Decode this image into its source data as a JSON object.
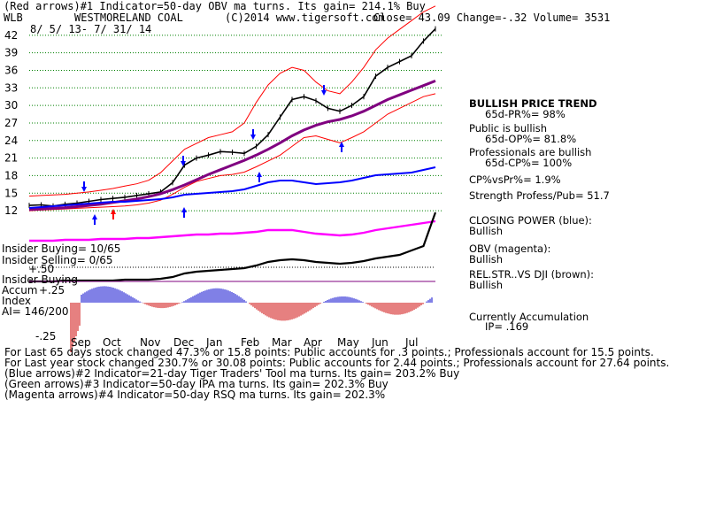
{
  "header": {
    "line1": "(Red arrows)#1 Indicator=50-day OBV ma turns. Its gain= 214.1% Buy",
    "ticker": "WLB",
    "company": "WESTMORELAND COAL",
    "copyright": "(C)2014 www.tigersoft.com",
    "quote": "Close=  43.09  Change=-.32 Volume= 3531",
    "date_range": "8/ 5/ 13- 7/ 31/ 14"
  },
  "right_panel": {
    "trend_title": "BULLISH PRICE TREND",
    "pr": "65d-PR%= 98%",
    "public": "Public is bullish",
    "op": "65d-OP%= 81.8%",
    "professionals": "Professionals are bullish",
    "cp": "65d-CP%= 100%",
    "cpvspr": "CP%vsPr%=  1.9%",
    "strength": "Strength Profess/Pub= 51.7",
    "closing_power": "CLOSING POWER (blue):",
    "cp_state": "Bullish",
    "obv": "OBV (magenta):",
    "obv_state": "Bullish",
    "relstr": "REL.STR..VS DJI (brown):",
    "relstr_state": "Bullish",
    "accum": "Currently Accumulation",
    "ip": "IP=  .169"
  },
  "left_labels": {
    "insider_buying_1": "Insider Buying= 10/65",
    "insider_selling": "Insider Selling= 0/65",
    "plus50": "+.50",
    "insider_buying_2": "Insider Buying",
    "accum": "Accum",
    "plus25": "+.25",
    "index": "Index",
    "ai": "AI= 146/200",
    "minus25": "-.25"
  },
  "footer": [
    "For Last 65 days stock changed  47.3% or  15.8 points:  Public accounts for  .3 points.;  Professionals account for  15.5 points.",
    "For Last year stock changed  230.7% or  30.08 points:  Public accounts for  2.44 points.;  Professionals account for  27.64 points.",
    "(Blue arrows)#2 Indicator=21-day Tiger Traders' Tool ma turns. Its gain= 203.2% Buy",
    "(Green arrows)#3 Indicator=50-day IPA ma turns. Its gain= 202.3% Buy",
    "(Magenta arrows)#4 Indicator=50-day RSQ ma turns. Its gain= 202.3%"
  ],
  "colors": {
    "price": "#000000",
    "band": "#ff0000",
    "ma": "#800080",
    "closing_power": "#0000ff",
    "obv": "#ff00ff",
    "relstr": "#8b4513",
    "grid": "#008000",
    "accum_pos": "#0000cc",
    "accum_neg": "#cc0000",
    "buy_arrow": "#0000ff",
    "sell_arrow": "#ff0000"
  },
  "chart_data": {
    "type": "line",
    "title": "WESTMORELAND COAL",
    "y_ticks": [
      42,
      39,
      36,
      33,
      30,
      27,
      24,
      21,
      18,
      15,
      12
    ],
    "ylim": [
      10.5,
      45
    ],
    "months": [
      "Sep",
      "Oct",
      "Nov",
      "Dec",
      "Jan",
      "Feb",
      "Mar",
      "Apr",
      "May",
      "Jun",
      "Jul"
    ],
    "x": [
      "Aug",
      "Aug",
      "Sep",
      "Sep",
      "Sep",
      "Oct",
      "Oct",
      "Oct",
      "Nov",
      "Nov",
      "Nov",
      "Dec",
      "Dec",
      "Dec",
      "Jan",
      "Jan",
      "Jan",
      "Feb",
      "Feb",
      "Feb",
      "Mar",
      "Mar",
      "Mar",
      "Apr",
      "Apr",
      "Apr",
      "May",
      "May",
      "May",
      "Jun",
      "Jun",
      "Jun",
      "Jul",
      "Jul",
      "Jul"
    ],
    "series": [
      {
        "values": [
          12.9,
          13.0,
          12.8,
          13.1,
          13.3,
          13.6,
          13.9,
          14.1,
          14.3,
          14.6,
          14.9,
          15.2,
          16.8,
          19.8,
          21.0,
          21.5,
          22.1,
          22.0,
          21.8,
          23.0,
          25.0,
          28.0,
          31.0,
          31.5,
          30.8,
          29.5,
          29.0,
          30.0,
          31.5,
          35.0,
          36.5,
          37.5,
          38.5,
          41.0,
          43.09
        ]
      },
      {
        "values": [
          14.5,
          14.6,
          14.7,
          14.8,
          15.0,
          15.2,
          15.5,
          15.8,
          16.2,
          16.6,
          17.2,
          18.5,
          20.5,
          22.5,
          23.5,
          24.5,
          25.0,
          25.5,
          27.0,
          30.5,
          33.5,
          35.5,
          36.5,
          36.0,
          34.0,
          32.5,
          32.0,
          34.0,
          36.5,
          39.5,
          41.5,
          43.0,
          44.5,
          46.0,
          47.0
        ]
      },
      {
        "values": [
          12.0,
          12.1,
          12.2,
          12.3,
          12.4,
          12.5,
          12.6,
          12.7,
          12.8,
          13.0,
          13.3,
          13.8,
          14.8,
          16.0,
          17.0,
          17.5,
          18.0,
          18.2,
          18.6,
          19.5,
          20.5,
          21.5,
          23.0,
          24.5,
          24.8,
          24.2,
          23.6,
          24.5,
          25.5,
          27.0,
          28.5,
          29.5,
          30.5,
          31.5,
          32.0
        ]
      },
      {
        "values": [
          12.2,
          12.3,
          12.4,
          12.5,
          12.7,
          12.9,
          13.1,
          13.4,
          13.7,
          14.0,
          14.4,
          14.9,
          15.6,
          16.4,
          17.3,
          18.2,
          19.0,
          19.8,
          20.6,
          21.5,
          22.5,
          23.6,
          24.8,
          25.8,
          26.6,
          27.2,
          27.6,
          28.2,
          29.0,
          30.0,
          31.0,
          31.8,
          32.6,
          33.4,
          34.2
        ]
      }
    ]
  }
}
